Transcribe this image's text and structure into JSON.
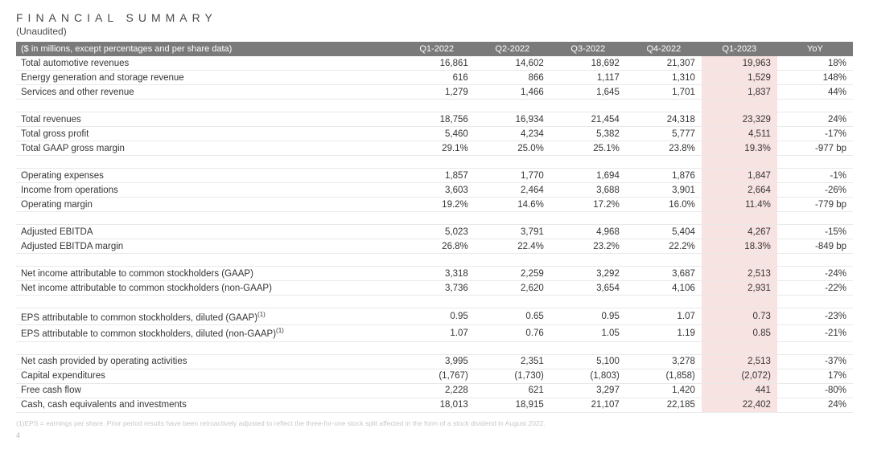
{
  "header": {
    "title": "FINANCIAL SUMMARY",
    "subtitle": "(Unaudited)"
  },
  "table": {
    "unit_note": "($ in millions, except percentages and per share data)",
    "columns": [
      "Q1-2022",
      "Q2-2022",
      "Q3-2022",
      "Q4-2022",
      "Q1-2023",
      "YoY"
    ],
    "highlight_column_index": 4,
    "highlight_color": "#f7e3e1",
    "header_bg": "#7a7a7a",
    "header_text_color": "#ffffff",
    "row_border_color": "#e9e9e9",
    "text_color": "#353535",
    "font_size_pt": 11.5,
    "groups": [
      [
        {
          "label": "Total automotive revenues",
          "values": [
            "16,861",
            "14,602",
            "18,692",
            "21,307",
            "19,963",
            "18%"
          ]
        },
        {
          "label": "Energy generation and storage revenue",
          "values": [
            "616",
            "866",
            "1,117",
            "1,310",
            "1,529",
            "148%"
          ]
        },
        {
          "label": "Services and other revenue",
          "values": [
            "1,279",
            "1,466",
            "1,645",
            "1,701",
            "1,837",
            "44%"
          ]
        }
      ],
      [
        {
          "label": "Total revenues",
          "values": [
            "18,756",
            "16,934",
            "21,454",
            "24,318",
            "23,329",
            "24%"
          ]
        },
        {
          "label": "Total gross profit",
          "values": [
            "5,460",
            "4,234",
            "5,382",
            "5,777",
            "4,511",
            "-17%"
          ]
        },
        {
          "label": "Total GAAP gross margin",
          "values": [
            "29.1%",
            "25.0%",
            "25.1%",
            "23.8%",
            "19.3%",
            "-977 bp"
          ]
        }
      ],
      [
        {
          "label": "Operating expenses",
          "values": [
            "1,857",
            "1,770",
            "1,694",
            "1,876",
            "1,847",
            "-1%"
          ]
        },
        {
          "label": "Income from operations",
          "values": [
            "3,603",
            "2,464",
            "3,688",
            "3,901",
            "2,664",
            "-26%"
          ]
        },
        {
          "label": "Operating margin",
          "values": [
            "19.2%",
            "14.6%",
            "17.2%",
            "16.0%",
            "11.4%",
            "-779 bp"
          ]
        }
      ],
      [
        {
          "label": "Adjusted EBITDA",
          "values": [
            "5,023",
            "3,791",
            "4,968",
            "5,404",
            "4,267",
            "-15%"
          ]
        },
        {
          "label": "Adjusted EBITDA margin",
          "values": [
            "26.8%",
            "22.4%",
            "23.2%",
            "22.2%",
            "18.3%",
            "-849 bp"
          ]
        }
      ],
      [
        {
          "label": "Net income attributable to common stockholders (GAAP)",
          "values": [
            "3,318",
            "2,259",
            "3,292",
            "3,687",
            "2,513",
            "-24%"
          ]
        },
        {
          "label": "Net income attributable to common stockholders (non-GAAP)",
          "values": [
            "3,736",
            "2,620",
            "3,654",
            "4,106",
            "2,931",
            "-22%"
          ]
        }
      ],
      [
        {
          "label": "EPS attributable to common stockholders, diluted (GAAP)",
          "sup": "(1)",
          "values": [
            "0.95",
            "0.65",
            "0.95",
            "1.07",
            "0.73",
            "-23%"
          ]
        },
        {
          "label": "EPS attributable to common stockholders, diluted (non-GAAP)",
          "sup": "(1)",
          "values": [
            "1.07",
            "0.76",
            "1.05",
            "1.19",
            "0.85",
            "-21%"
          ]
        }
      ],
      [
        {
          "label": "Net cash provided by operating activities",
          "values": [
            "3,995",
            "2,351",
            "5,100",
            "3,278",
            "2,513",
            "-37%"
          ]
        },
        {
          "label": "Capital expenditures",
          "values": [
            "(1,767)",
            "(1,730)",
            "(1,803)",
            "(1,858)",
            "(2,072)",
            "17%"
          ]
        },
        {
          "label": "Free cash flow",
          "values": [
            "2,228",
            "621",
            "3,297",
            "1,420",
            "441",
            "-80%"
          ]
        },
        {
          "label": "Cash, cash equivalents and investments",
          "values": [
            "18,013",
            "18,915",
            "21,107",
            "22,185",
            "22,402",
            "24%"
          ]
        }
      ]
    ]
  },
  "footnote": "(1)EPS = earnings per share. Prior period results have been retroactively adjusted to reflect the three-for-one stock split affected in the form of a stock dividend in August 2022.",
  "page_number": "4"
}
